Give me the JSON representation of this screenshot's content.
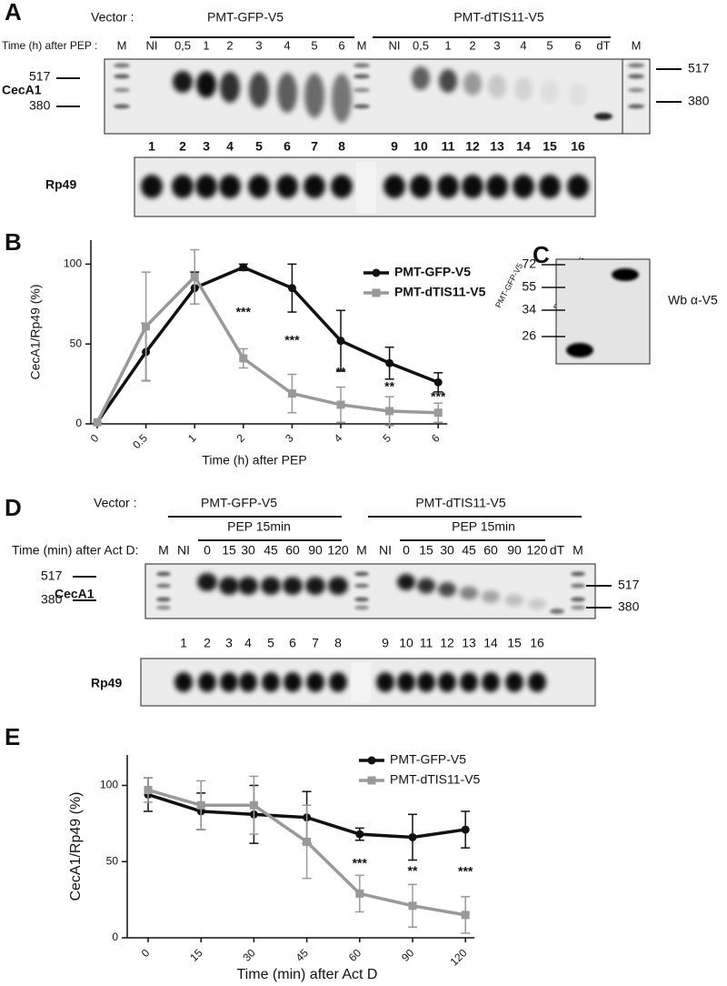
{
  "panels": [
    "A",
    "B",
    "C",
    "D",
    "E"
  ],
  "gel_a": {
    "vector_label": "Vector :",
    "groups": [
      "PMT-GFP-V5",
      "PMT-dTIS11-V5"
    ],
    "time_label": "Time (h) after PEP :",
    "lanes": [
      "M",
      "NI",
      "0,5",
      "1",
      "2",
      "3",
      "4",
      "5",
      "6",
      "M",
      "NI",
      "0,5",
      "1",
      "2",
      "3",
      "4",
      "5",
      "6",
      "dT",
      "M"
    ],
    "row_label": "CecA1",
    "sizes_left": [
      "517",
      "380"
    ],
    "sizes_right": [
      "517",
      "380"
    ],
    "lane_numbers": [
      "1",
      "2",
      "3",
      "4",
      "5",
      "6",
      "7",
      "8",
      "9",
      "10",
      "11",
      "12",
      "13",
      "14",
      "15",
      "16"
    ],
    "loading_label": "Rp49"
  },
  "blot_c": {
    "lanes": [
      "PMT-GFP-V5",
      "PMT-dTIS11-V5"
    ],
    "markers": [
      "72",
      "55",
      "34",
      "26"
    ],
    "label": "Wb α-V5"
  },
  "gel_d": {
    "vector_label": "Vector :",
    "groups": [
      "PMT-GFP-V5",
      "PMT-dTIS11-V5"
    ],
    "treatments": [
      "PEP 15min",
      "PEP 15min"
    ],
    "time_label": "Time (min) after Act D:",
    "lanes": [
      "M",
      "NI",
      "0",
      "15",
      "30",
      "45",
      "60",
      "90",
      "120",
      "M",
      "NI",
      "0",
      "15",
      "30",
      "45",
      "60",
      "90",
      "120",
      "dT",
      "M"
    ],
    "row_label": "CecA1",
    "sizes_left": [
      "517",
      "380"
    ],
    "sizes_right": [
      "517",
      "380"
    ],
    "lane_numbers": [
      "1",
      "2",
      "3",
      "4",
      "5",
      "6",
      "7",
      "8",
      "9",
      "10",
      "11",
      "12",
      "13",
      "14",
      "15",
      "16"
    ],
    "loading_label": "Rp49"
  },
  "chart_data": [
    {
      "type": "line",
      "y_label": "CecA1/Rp49 (%)",
      "x_label": "Time (h) after PEP",
      "categories": [
        "0",
        "0.5",
        "1",
        "2",
        "3",
        "4",
        "5",
        "6"
      ],
      "series": [
        {
          "name": "PMT-GFP-V5",
          "color": "#111111",
          "marker": "circle",
          "values": [
            1,
            45,
            85,
            98,
            85,
            52,
            38,
            26
          ],
          "errors": [
            0,
            18,
            10,
            2,
            15,
            19,
            10,
            6
          ]
        },
        {
          "name": "PMT-dTIS11-V5",
          "color": "#999999",
          "marker": "square",
          "values": [
            1,
            61,
            92,
            41,
            19,
            12,
            8,
            7
          ],
          "errors": [
            0,
            34,
            17,
            6,
            12,
            11,
            9,
            6
          ]
        }
      ],
      "significance": [
        null,
        null,
        null,
        "***",
        "***",
        "**",
        "**",
        "***"
      ],
      "ylim": [
        0,
        115
      ],
      "yticks": [
        0,
        50,
        100
      ],
      "legend_bold": true
    },
    {
      "type": "line",
      "y_label": "CecA1/Rp49 (%)",
      "x_label": "Time (min) after Act D",
      "categories": [
        "0",
        "15",
        "30",
        "45",
        "60",
        "90",
        "120"
      ],
      "series": [
        {
          "name": "PMT-GFP-V5",
          "color": "#111111",
          "marker": "circle",
          "values": [
            94,
            83,
            81,
            79,
            68,
            66,
            71
          ],
          "errors": [
            11,
            12,
            19,
            17,
            4,
            15,
            12
          ]
        },
        {
          "name": "PMT-dTIS11-V5",
          "color": "#999999",
          "marker": "square",
          "values": [
            97,
            87,
            87,
            63,
            29,
            21,
            15
          ],
          "errors": [
            8,
            16,
            19,
            24,
            12,
            14,
            12
          ]
        }
      ],
      "significance": [
        null,
        null,
        null,
        null,
        "***",
        "**",
        "***"
      ],
      "ylim": [
        0,
        120
      ],
      "yticks": [
        0,
        50,
        100
      ],
      "legend_bold": false
    }
  ]
}
